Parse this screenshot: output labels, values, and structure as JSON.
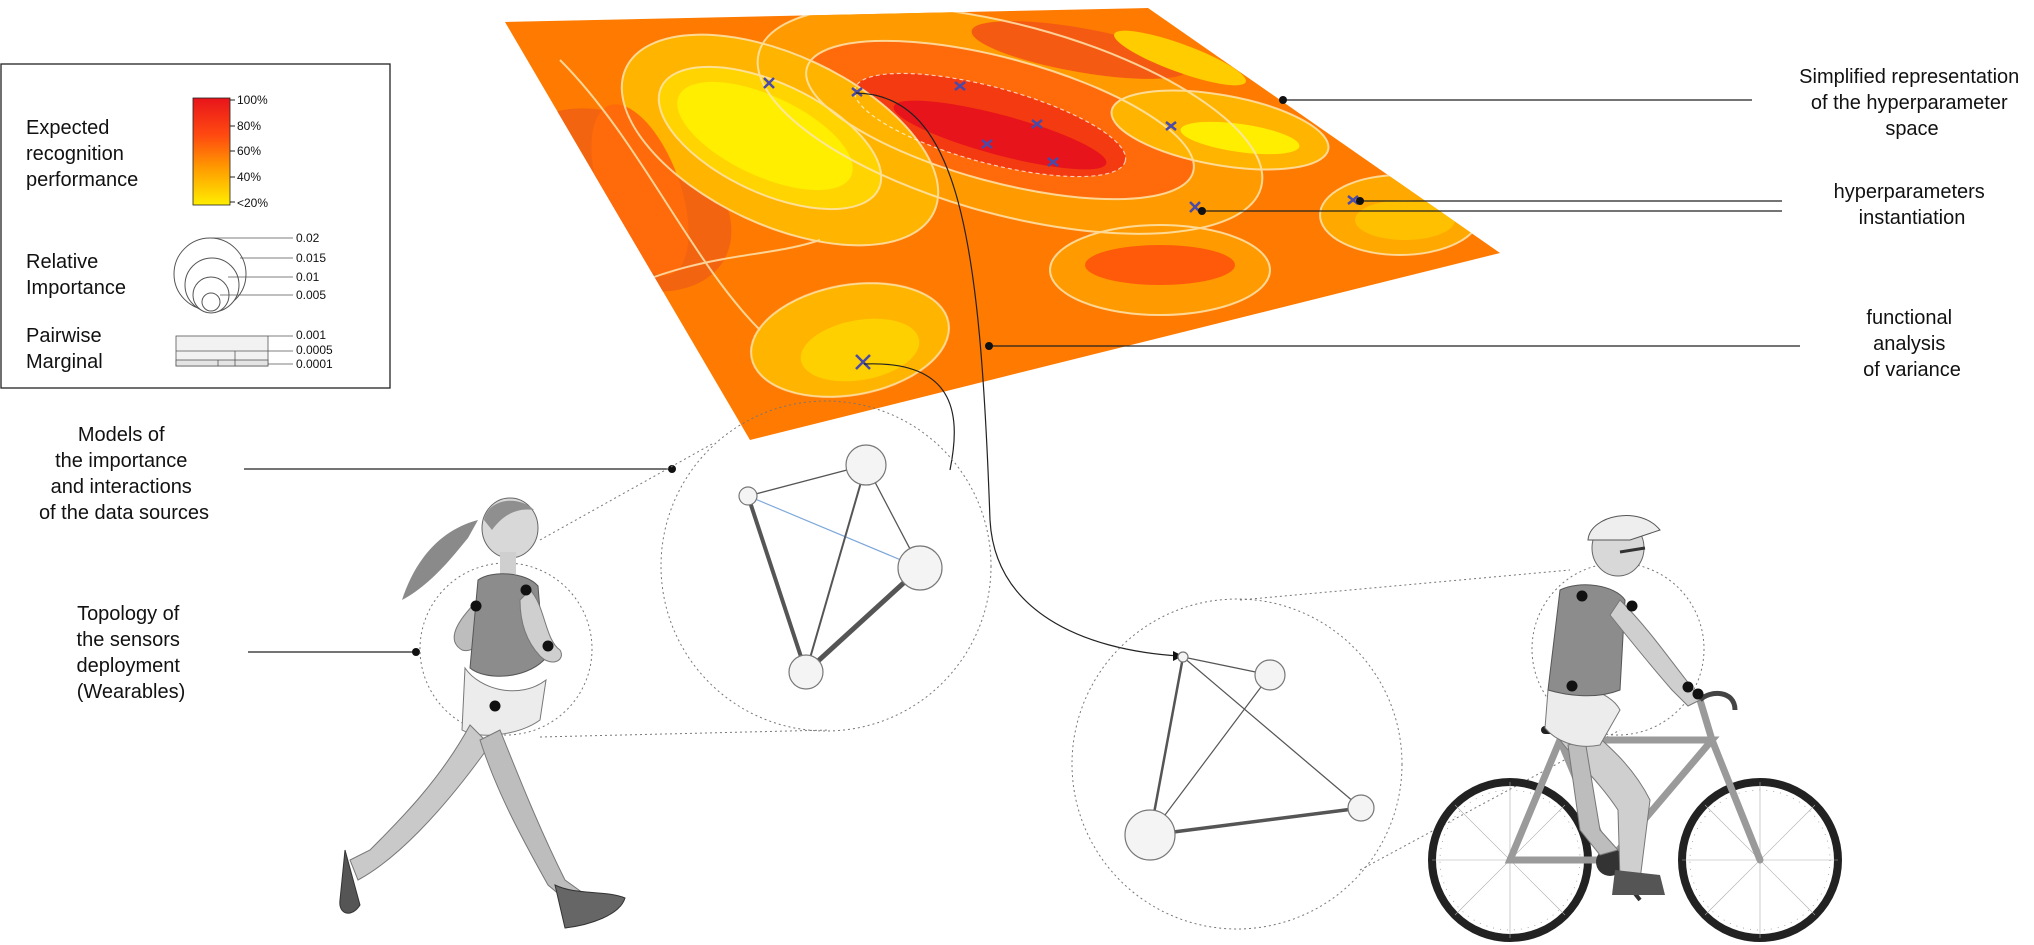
{
  "legend": {
    "performance": {
      "label_lines": [
        "Expected",
        "recognition",
        "performance"
      ],
      "ticks": [
        "100%",
        "80%",
        "60%",
        "40%",
        "<20%"
      ]
    },
    "importance": {
      "label_lines": [
        "Relative",
        "Importance"
      ],
      "ticks": [
        "0.02",
        "0.015",
        "0.01",
        "0.005"
      ]
    },
    "marginal": {
      "label_lines": [
        "Pairwise",
        "Marginal"
      ],
      "ticks": [
        "0.001",
        "0.0005",
        "0.0001"
      ]
    }
  },
  "annotations": {
    "space": [
      "Simplified representation",
      "of the hyperparameter",
      "space"
    ],
    "instantiation": [
      "hyperparameters",
      "instantiation"
    ],
    "fanova": [
      "functional",
      "analysis",
      "of variance"
    ],
    "models": [
      "Models of",
      "the importance",
      "and interactions",
      "of the data sources"
    ],
    "topology": [
      "Topology of",
      "the sensors",
      "deployment",
      "(Wearables)"
    ]
  },
  "colors": {
    "high": "#e8141b",
    "mid": "#ff8a00",
    "low": "#ffee00",
    "network_edge": "#555555",
    "weak_edge": "#7da7d9",
    "marker": "#4a4aa8"
  },
  "icons": [
    "runner-figure",
    "cyclist-figure",
    "bicycle",
    "network-graph",
    "contour-surface"
  ]
}
